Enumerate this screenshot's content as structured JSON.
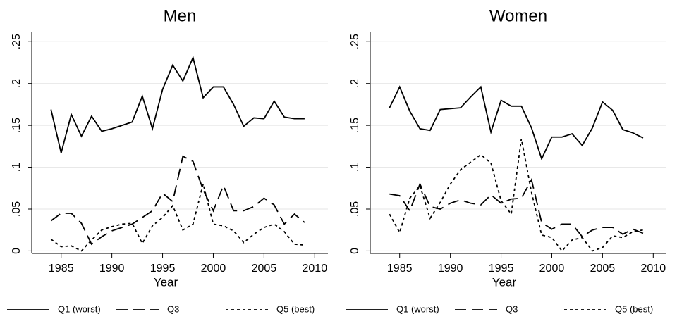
{
  "chart_data": [
    {
      "type": "line",
      "title": "Men",
      "x_label": "Year",
      "x": [
        1984,
        1985,
        1986,
        1987,
        1988,
        1989,
        1990,
        1991,
        1992,
        1993,
        1994,
        1995,
        1996,
        1997,
        1998,
        1999,
        2000,
        2001,
        2002,
        2003,
        2004,
        2005,
        2006,
        2007,
        2008,
        2009
      ],
      "series": [
        {
          "name": "Q1 (worst)",
          "color": "#000000",
          "dash": "solid",
          "values": [
            0.169,
            0.117,
            0.163,
            0.137,
            0.161,
            0.143,
            0.146,
            0.15,
            0.154,
            0.185,
            0.146,
            0.193,
            0.222,
            0.203,
            0.231,
            0.183,
            0.196,
            0.196,
            0.175,
            0.149,
            0.159,
            0.158,
            0.179,
            0.16,
            0.158,
            0.158
          ]
        },
        {
          "name": "Q3",
          "color": "#000000",
          "dash": "long",
          "values": [
            0.036,
            0.045,
            0.045,
            0.033,
            0.008,
            0.017,
            0.024,
            0.028,
            0.032,
            0.04,
            0.048,
            0.069,
            0.059,
            0.113,
            0.107,
            0.073,
            0.048,
            0.078,
            0.048,
            0.048,
            0.053,
            0.063,
            0.055,
            0.032,
            0.044,
            0.034
          ]
        },
        {
          "name": "Q5 (best)",
          "color": "#000000",
          "dash": "short",
          "values": [
            0.014,
            0.005,
            0.006,
            0.0,
            0.013,
            0.025,
            0.029,
            0.032,
            0.033,
            0.009,
            0.03,
            0.04,
            0.054,
            0.025,
            0.032,
            0.08,
            0.032,
            0.03,
            0.024,
            0.01,
            0.02,
            0.028,
            0.032,
            0.023,
            0.008,
            0.007
          ]
        }
      ],
      "xlim": [
        1982.1,
        2011.3
      ],
      "xticks": [
        1985,
        1990,
        1995,
        2000,
        2005,
        2010
      ],
      "ylim": [
        -0.003,
        0.262
      ],
      "yticks": [
        0,
        {
          "value": 0.05,
          "label": ".05"
        },
        {
          "value": 0.1,
          "label": ".1"
        },
        {
          "value": 0.15,
          "label": ".15"
        },
        {
          "value": 0.2,
          "label": ".2"
        },
        {
          "value": 0.25,
          "label": ".25"
        }
      ],
      "grid": true,
      "legend": "bottom"
    },
    {
      "type": "line",
      "title": "Women",
      "x_label": "Year",
      "x": [
        1984,
        1985,
        1986,
        1987,
        1988,
        1989,
        1990,
        1991,
        1992,
        1993,
        1994,
        1995,
        1996,
        1997,
        1998,
        1999,
        2000,
        2001,
        2002,
        2003,
        2004,
        2005,
        2006,
        2007,
        2008,
        2009
      ],
      "series": [
        {
          "name": "Q1 (worst)",
          "color": "#000000",
          "dash": "solid",
          "values": [
            0.171,
            0.196,
            0.167,
            0.146,
            0.144,
            0.169,
            0.17,
            0.171,
            0.184,
            0.196,
            0.142,
            0.18,
            0.173,
            0.173,
            0.147,
            0.11,
            0.136,
            0.136,
            0.14,
            0.126,
            0.147,
            0.178,
            0.168,
            0.145,
            0.141,
            0.135
          ]
        },
        {
          "name": "Q3",
          "color": "#000000",
          "dash": "long",
          "values": [
            0.068,
            0.066,
            0.048,
            0.08,
            0.053,
            0.05,
            0.057,
            0.061,
            0.057,
            0.055,
            0.067,
            0.057,
            0.062,
            0.063,
            0.085,
            0.034,
            0.026,
            0.032,
            0.032,
            0.017,
            0.025,
            0.028,
            0.028,
            0.02,
            0.026,
            0.021
          ]
        },
        {
          "name": "Q5 (best)",
          "color": "#000000",
          "dash": "short",
          "values": [
            0.044,
            0.022,
            0.063,
            0.078,
            0.039,
            0.058,
            0.08,
            0.097,
            0.106,
            0.115,
            0.105,
            0.06,
            0.044,
            0.134,
            0.07,
            0.019,
            0.016,
            0.0,
            0.013,
            0.016,
            0.0,
            0.004,
            0.018,
            0.016,
            0.023,
            0.025
          ]
        }
      ],
      "xlim": [
        1982.1,
        2011.3
      ],
      "xticks": [
        1985,
        1990,
        1995,
        2000,
        2005,
        2010
      ],
      "ylim": [
        -0.003,
        0.262
      ],
      "yticks": [
        0,
        {
          "value": 0.05,
          "label": ".05"
        },
        {
          "value": 0.1,
          "label": ".1"
        },
        {
          "value": 0.15,
          "label": ".15"
        },
        {
          "value": 0.2,
          "label": ".2"
        },
        {
          "value": 0.25,
          "label": ".25"
        }
      ],
      "grid": true,
      "legend": "bottom"
    }
  ]
}
